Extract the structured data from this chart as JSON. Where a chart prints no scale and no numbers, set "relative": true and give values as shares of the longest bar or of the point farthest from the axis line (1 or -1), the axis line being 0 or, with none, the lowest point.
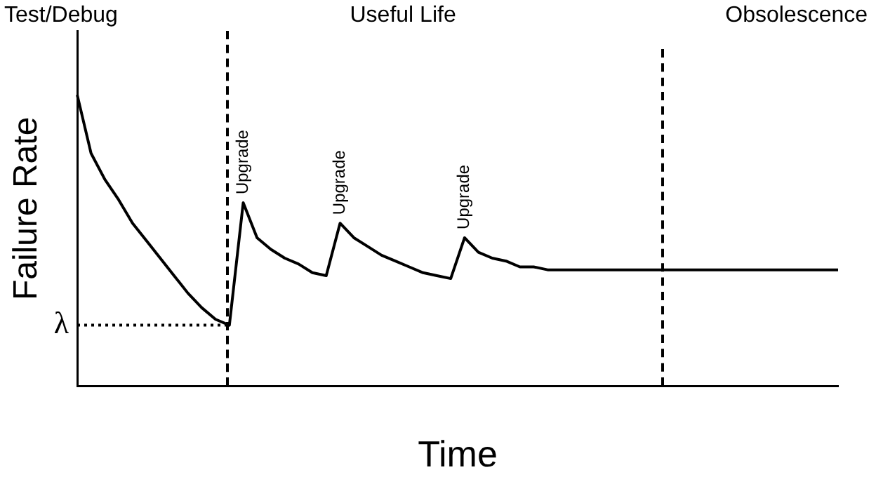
{
  "chart_data": {
    "type": "line",
    "relative": true,
    "xlabel": "Time",
    "ylabel": "Failure Rate",
    "grid": false,
    "legend": false,
    "marker": "none",
    "categories": [
      null,
      null,
      null,
      null,
      null,
      null,
      null,
      null,
      null,
      null,
      null,
      null,
      null,
      null,
      null,
      null,
      null,
      null,
      null,
      null,
      null,
      null,
      null,
      null,
      null,
      null,
      null,
      null,
      null,
      null,
      null,
      null,
      null,
      null,
      null,
      null,
      null,
      null,
      null,
      null,
      null,
      null,
      null,
      null,
      null,
      null,
      null,
      null,
      null,
      null,
      null,
      null,
      null,
      null,
      null,
      null
    ],
    "series": [
      {
        "color": "#000000",
        "line_style": "solid",
        "values": [
          1,
          0.8,
          0.71,
          0.64,
          0.56,
          0.5,
          0.44,
          0.38,
          0.32,
          0.27,
          0.23,
          0.21,
          0.63,
          0.51,
          0.47,
          0.44,
          0.42,
          0.39,
          0.38,
          0.56,
          0.51,
          0.48,
          0.45,
          0.43,
          0.41,
          0.39,
          0.38,
          0.37,
          0.51,
          0.46,
          0.44,
          0.43,
          0.41,
          0.41,
          0.4,
          0.4,
          0.4,
          0.4,
          0.4,
          0.4,
          0.4,
          0.4,
          0.4,
          0.4,
          0.4,
          0.4,
          0.4,
          0.4,
          0.4,
          0.4,
          0.4,
          0.4,
          0.4,
          0.4,
          0.4,
          0.4
        ]
      }
    ],
    "ref_lines": [
      {
        "axis": "y",
        "value": 0.21,
        "label": "λ",
        "line_style": "dotted",
        "color": "#000000"
      }
    ],
    "annotations": [
      "Test/Debug",
      "Useful Life",
      "Obsolescence",
      {
        "text": "Upgrade",
        "y": 0.63
      },
      {
        "text": "Upgrade",
        "y": 0.56
      },
      {
        "text": "Upgrade",
        "y": 0.51
      }
    ]
  }
}
